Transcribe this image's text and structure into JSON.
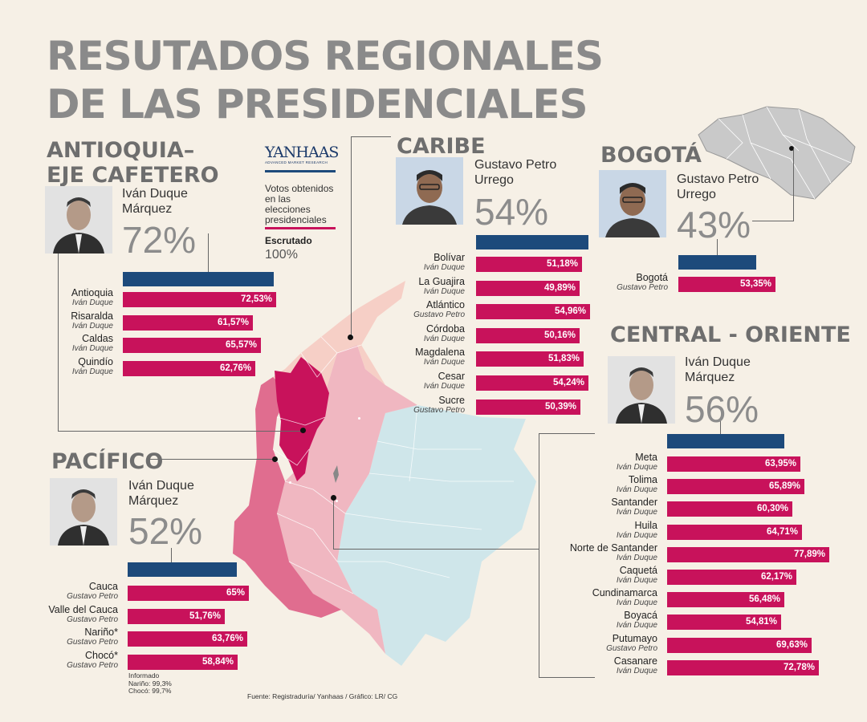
{
  "title_lines": [
    "RESUTADOS REGIONALES",
    "DE LAS PRESIDENCIALES"
  ],
  "legend": {
    "brand": "YANHAAS",
    "brand_sub": "ADVANCED MARKET RESEARCH",
    "votes": [
      "Votos obtenidos",
      "en las elecciones",
      "presidenciales"
    ],
    "scrutiny_label": "Escrutado",
    "scrutiny_value": "100%"
  },
  "footnote": [
    "Informado",
    "Nariño: 99,3%",
    "Chocó: 99,7%"
  ],
  "source": "Fuente: Registraduría/ Yanhaas / Gráfico: LR/ CG",
  "colors": {
    "bar": "#c8125b",
    "summary_bar": "#1d4a7b",
    "title": "#8a8a8a",
    "map_antioquia": "#c8125b",
    "map_pacifico": "#e06d8f",
    "map_central": "#f0b7c1",
    "map_caribe": "#f6cfc6",
    "map_east": "#cfe6ea"
  },
  "regions": {
    "antioquia": {
      "title": [
        "ANTIOQUIA–",
        "EJE CAFETERO"
      ],
      "candidate": [
        "Iván Duque",
        "Márquez"
      ],
      "pct": "72%",
      "rows": [
        {
          "name": "Antioquia",
          "winner": "Iván Duque",
          "label": "72,53%"
        },
        {
          "name": "Risaralda",
          "winner": "Iván Duque",
          "label": "61,57%"
        },
        {
          "name": "Caldas",
          "winner": "Iván Duque",
          "label": "65,57%"
        },
        {
          "name": "Quindío",
          "winner": "Iván Duque",
          "label": "62,76%"
        }
      ]
    },
    "caribe": {
      "title": [
        "CARIBE"
      ],
      "candidate": [
        "Gustavo Petro",
        "Urrego"
      ],
      "pct": "54%",
      "rows": [
        {
          "name": "Bolívar",
          "winner": "Iván Duque",
          "label": "51,18%"
        },
        {
          "name": "La Guajira",
          "winner": "Iván Duque",
          "label": "49,89%"
        },
        {
          "name": "Atlántico",
          "winner": "Gustavo Petro",
          "label": "54,96%"
        },
        {
          "name": "Córdoba",
          "winner": "Iván Duque",
          "label": "50,16%"
        },
        {
          "name": "Magdalena",
          "winner": "Iván Duque",
          "label": "51,83%"
        },
        {
          "name": "Cesar",
          "winner": "Iván Duque",
          "label": "54,24%"
        },
        {
          "name": "Sucre",
          "winner": "Gustavo Petro",
          "label": "50,39%"
        }
      ]
    },
    "bogota": {
      "title": [
        "BOGOTÁ"
      ],
      "candidate": [
        "Gustavo Petro",
        "Urrego"
      ],
      "pct": "43%",
      "rows": [
        {
          "name": "Bogotá",
          "winner": "Gustavo Petro",
          "label": "53,35%"
        }
      ]
    },
    "central": {
      "title": [
        "CENTRAL - ORIENTE"
      ],
      "candidate": [
        "Iván Duque",
        "Márquez"
      ],
      "pct": "56%",
      "rows": [
        {
          "name": "Meta",
          "winner": "Iván Duque",
          "label": "63,95%"
        },
        {
          "name": "Tolima",
          "winner": "Iván Duque",
          "label": "65,89%"
        },
        {
          "name": "Santander",
          "winner": "Iván Duque",
          "label": "60,30%"
        },
        {
          "name": "Huila",
          "winner": "Iván Duque",
          "label": "64,71%"
        },
        {
          "name": "Norte de Santander",
          "winner": "Iván Duque",
          "label": "77,89%"
        },
        {
          "name": "Caquetá",
          "winner": "Iván Duque",
          "label": "62,17%"
        },
        {
          "name": "Cundinamarca",
          "winner": "Iván Duque",
          "label": "56,48%"
        },
        {
          "name": "Boyacá",
          "winner": "Iván Duque",
          "label": "54,81%"
        },
        {
          "name": "Putumayo",
          "winner": "Gustavo Petro",
          "label": "69,63%"
        },
        {
          "name": "Casanare",
          "winner": "Iván Duque",
          "label": "72,78%"
        }
      ]
    },
    "pacifico": {
      "title": [
        "PACÍFICO"
      ],
      "candidate": [
        "Iván Duque",
        "Márquez"
      ],
      "pct": "52%",
      "rows": [
        {
          "name": "Cauca",
          "winner": "Gustavo Petro",
          "label": "65%"
        },
        {
          "name": "Valle del Cauca",
          "winner": "Gustavo Petro",
          "label": "51,76%"
        },
        {
          "name": "Nariño*",
          "winner": "Gustavo Petro",
          "label": "63,76%"
        },
        {
          "name": "Chocó*",
          "winner": "Gustavo Petro",
          "label": "58,84%"
        }
      ]
    }
  },
  "chart_data": {
    "type": "bar",
    "title": "RESUTADOS REGIONALES DE LAS PRESIDENCIALES",
    "value_unit": "percent of votes for department winner",
    "xlim": [
      0,
      100
    ],
    "regions": [
      {
        "name": "ANTIOQUIA– EJE CAFETERO",
        "winner": "Iván Duque Márquez",
        "summary": 72,
        "categories": [
          "Antioquia",
          "Risaralda",
          "Caldas",
          "Quindío"
        ],
        "values": [
          72.53,
          61.57,
          65.57,
          62.76
        ]
      },
      {
        "name": "CARIBE",
        "winner": "Gustavo Petro Urrego",
        "summary": 54,
        "categories": [
          "Bolívar",
          "La Guajira",
          "Atlántico",
          "Córdoba",
          "Magdalena",
          "Cesar",
          "Sucre"
        ],
        "values": [
          51.18,
          49.89,
          54.96,
          50.16,
          51.83,
          54.24,
          50.39
        ]
      },
      {
        "name": "BOGOTÁ",
        "winner": "Gustavo Petro Urrego",
        "summary": 43,
        "categories": [
          "Bogotá"
        ],
        "values": [
          53.35
        ]
      },
      {
        "name": "CENTRAL - ORIENTE",
        "winner": "Iván Duque Márquez",
        "summary": 56,
        "categories": [
          "Meta",
          "Tolima",
          "Santander",
          "Huila",
          "Norte de Santander",
          "Caquetá",
          "Cundinamarca",
          "Boyacá",
          "Putumayo",
          "Casanare"
        ],
        "values": [
          63.95,
          65.89,
          60.3,
          64.71,
          77.89,
          62.17,
          56.48,
          54.81,
          69.63,
          72.78
        ]
      },
      {
        "name": "PACÍFICO",
        "winner": "Iván Duque Márquez",
        "summary": 52,
        "categories": [
          "Cauca",
          "Valle del Cauca",
          "Nariño*",
          "Chocó*"
        ],
        "values": [
          65,
          51.76,
          63.76,
          58.84
        ]
      }
    ]
  }
}
